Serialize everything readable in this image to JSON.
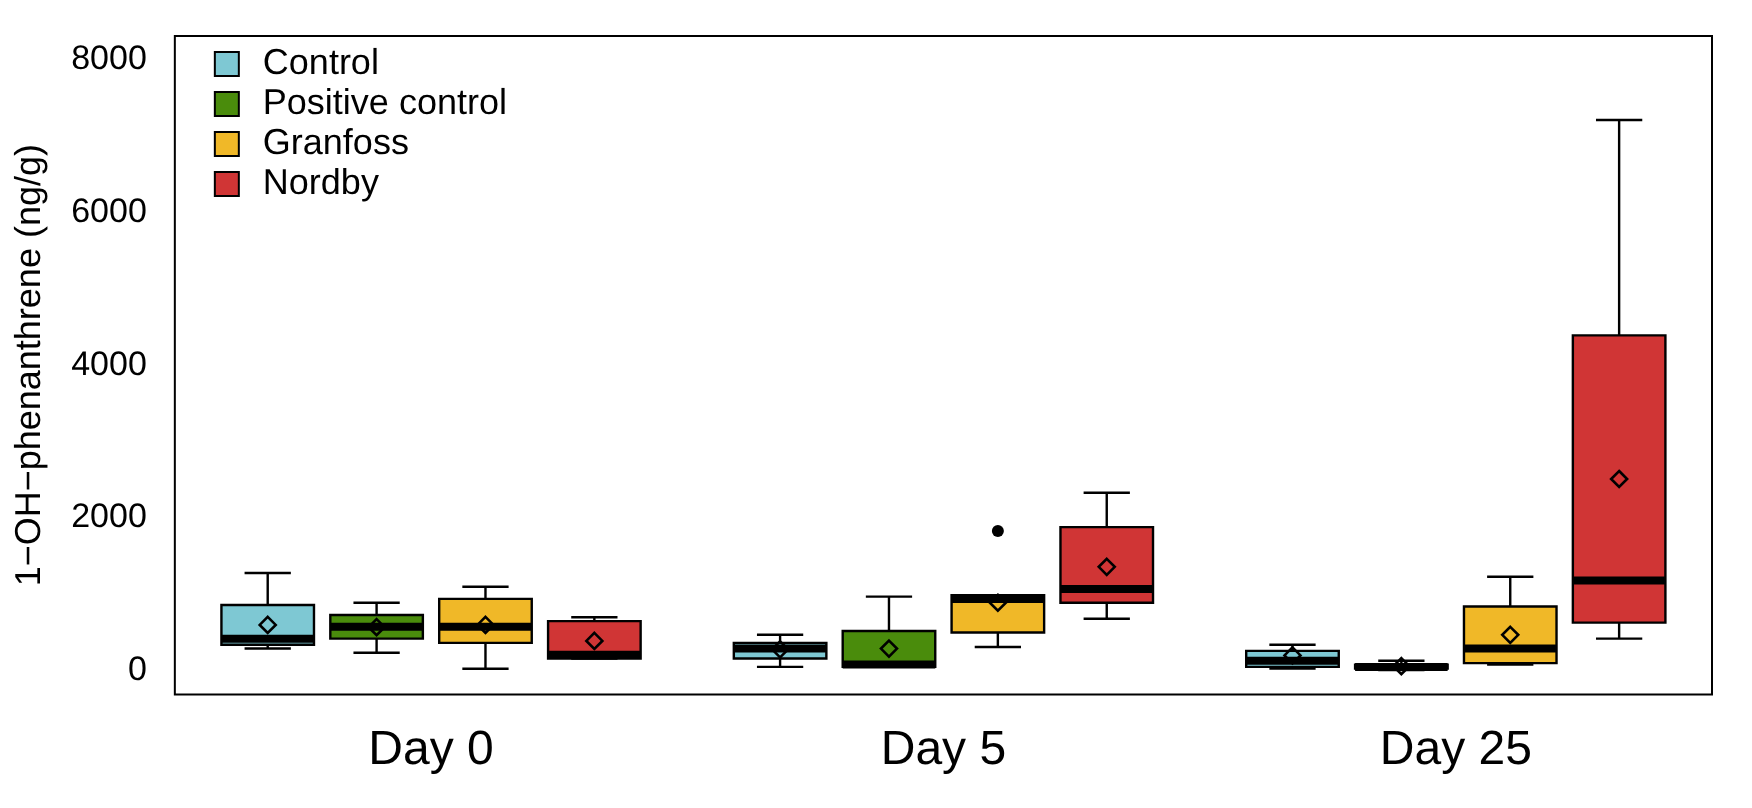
{
  "chart_data": {
    "type": "box",
    "ylabel": "1−OH−phenanthrene (ng/g)",
    "categories": [
      "Day 0",
      "Day 5",
      "Day 25"
    ],
    "ylim": [
      -310,
      8310
    ],
    "yticks": [
      0,
      2000,
      4000,
      6000,
      8000
    ],
    "grid": false,
    "legend": "top left",
    "marker": "diamond",
    "series": [
      {
        "name": "Control",
        "color": "#7ec8d3",
        "boxes": [
          {
            "low": 290,
            "q1": 340,
            "median": 420,
            "q3": 860,
            "high": 1280,
            "mean": 600
          },
          {
            "low": 50,
            "q1": 160,
            "median": 290,
            "q3": 365,
            "high": 470,
            "mean": 280
          },
          {
            "low": 30,
            "q1": 50,
            "median": 130,
            "q3": 260,
            "high": 340,
            "mean": 200
          }
        ]
      },
      {
        "name": "Positive control",
        "color": "#4a8c0c",
        "boxes": [
          {
            "low": 235,
            "q1": 420,
            "median": 575,
            "q3": 730,
            "high": 890,
            "mean": 570
          },
          {
            "low": 50,
            "q1": 50,
            "median": 80,
            "q3": 520,
            "high": 970,
            "mean": 290
          },
          {
            "low": 10,
            "q1": 30,
            "median": 50,
            "q3": 80,
            "high": 130,
            "mean": 60
          }
        ]
      },
      {
        "name": "Granfoss",
        "color": "#f0b828",
        "boxes": [
          {
            "low": 25,
            "q1": 365,
            "median": 575,
            "q3": 940,
            "high": 1100,
            "mean": 600
          },
          {
            "low": 310,
            "q1": 500,
            "median": 940,
            "q3": 990,
            "high": 990,
            "mean": 890,
            "outliers": [
              1830
            ]
          },
          {
            "low": 80,
            "q1": 100,
            "median": 290,
            "q3": 840,
            "high": 1230,
            "mean": 470
          }
        ]
      },
      {
        "name": "Nordby",
        "color": "#d03535",
        "boxes": [
          {
            "low": 160,
            "q1": 160,
            "median": 210,
            "q3": 650,
            "high": 700,
            "mean": 390
          },
          {
            "low": 680,
            "q1": 890,
            "median": 1070,
            "q3": 1880,
            "high": 2330,
            "mean": 1360
          },
          {
            "low": 420,
            "q1": 630,
            "median": 1180,
            "q3": 4390,
            "high": 7210,
            "mean": 2510
          }
        ]
      }
    ]
  }
}
